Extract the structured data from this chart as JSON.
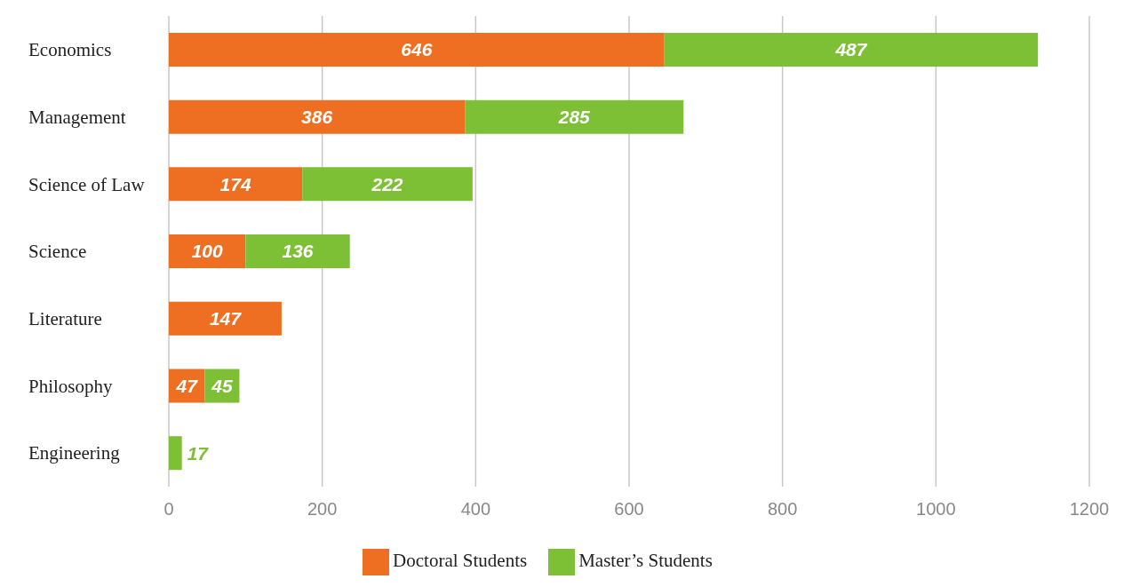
{
  "chart_data": {
    "type": "bar",
    "orientation": "horizontal",
    "stacked": true,
    "categories": [
      "Economics",
      "Management",
      "Science of Law",
      "Science",
      "Literature",
      "Philosophy",
      "Engineering"
    ],
    "series": [
      {
        "name": "Doctoral Students",
        "color": "#ee6f22",
        "values": [
          646,
          386,
          174,
          100,
          147,
          47,
          null
        ]
      },
      {
        "name": "Master’s Students",
        "color": "#7dbf35",
        "values": [
          487,
          285,
          222,
          136,
          null,
          45,
          17
        ]
      }
    ],
    "xlim": [
      0,
      1200
    ],
    "xticks": [
      0,
      200,
      400,
      600,
      800,
      1000,
      1200
    ],
    "grid": "x",
    "legend": "bottom",
    "data_labels": true
  }
}
